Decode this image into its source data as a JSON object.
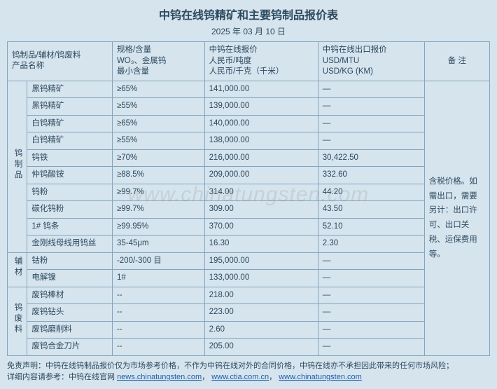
{
  "title": "中钨在线钨精矿和主要钨制品报价表",
  "date": "2025 年 03 月 10 日",
  "watermark": "www.chinatungsten.com",
  "headers": {
    "cat_name": "钨制品/辅材/钨废料\n产品名称",
    "spec": "规格/含量\nWO₃、金属钨\n最小含量",
    "price": "中钨在线报价\n人民币/吨度\n人民币/千克（千米）",
    "usd": "中钨在线出口报价\nUSD/MTU\nUSD/KG (KM)",
    "note": "备 注"
  },
  "categories": [
    {
      "label": "钨制品",
      "rows": [
        {
          "name": "黑钨精矿",
          "spec": "≥65%",
          "price": "141,000.00",
          "usd": "—"
        },
        {
          "name": "黑钨精矿",
          "spec": "≥55%",
          "price": "139,000.00",
          "usd": "—"
        },
        {
          "name": "白钨精矿",
          "spec": "≥65%",
          "price": "140,000.00",
          "usd": "—"
        },
        {
          "name": "白钨精矿",
          "spec": "≥55%",
          "price": "138,000.00",
          "usd": "—"
        },
        {
          "name": "钨铁",
          "spec": "≥70%",
          "price": "216,000.00",
          "usd": "30,422.50"
        },
        {
          "name": "仲钨酸铵",
          "spec": "≥88.5%",
          "price": "209,000.00",
          "usd": "332.60"
        },
        {
          "name": "钨粉",
          "spec": "≥99.7%",
          "price": "314.00",
          "usd": "44.20"
        },
        {
          "name": "碳化钨粉",
          "spec": "≥99.7%",
          "price": "309.00",
          "usd": "43.50"
        },
        {
          "name": "1# 钨条",
          "spec": "≥99.95%",
          "price": "370.00",
          "usd": "52.10"
        },
        {
          "name": "金刚线母线用钨丝",
          "spec": "35-45μm",
          "price": "16.30",
          "usd": "2.30"
        }
      ]
    },
    {
      "label": "辅材",
      "rows": [
        {
          "name": "钴粉",
          "spec": "-200/-300 目",
          "price": "195,000.00",
          "usd": "—"
        },
        {
          "name": "电解镍",
          "spec": "1#",
          "price": "133,000.00",
          "usd": "—"
        }
      ]
    },
    {
      "label": "钨废料",
      "rows": [
        {
          "name": "废钨棒材",
          "spec": "--",
          "price": "218.00",
          "usd": "—"
        },
        {
          "name": "废钨钻头",
          "spec": "--",
          "price": "223.00",
          "usd": "—"
        },
        {
          "name": "废钨磨削料",
          "spec": "--",
          "price": "2.60",
          "usd": "—"
        },
        {
          "name": "废钨合金刀片",
          "spec": "--",
          "price": "205.00",
          "usd": "—"
        }
      ]
    }
  ],
  "note_text": "含税价格。如需出口，需要另计：出口许可、出口关税、运保费用等。",
  "disclaimer": {
    "line1": "免责声明：中钨在线钨制品报价仅为市场参考价格，不作为中钨在线对外的合同价格，中钨在线亦不承担因此带来的任何市场风险；",
    "line2_prefix": "详细内容请参考：中钨在线官网 ",
    "links": [
      "news.chinatungsten.com",
      "www.ctia.com.cn",
      "www.chinatungsten.com"
    ]
  }
}
